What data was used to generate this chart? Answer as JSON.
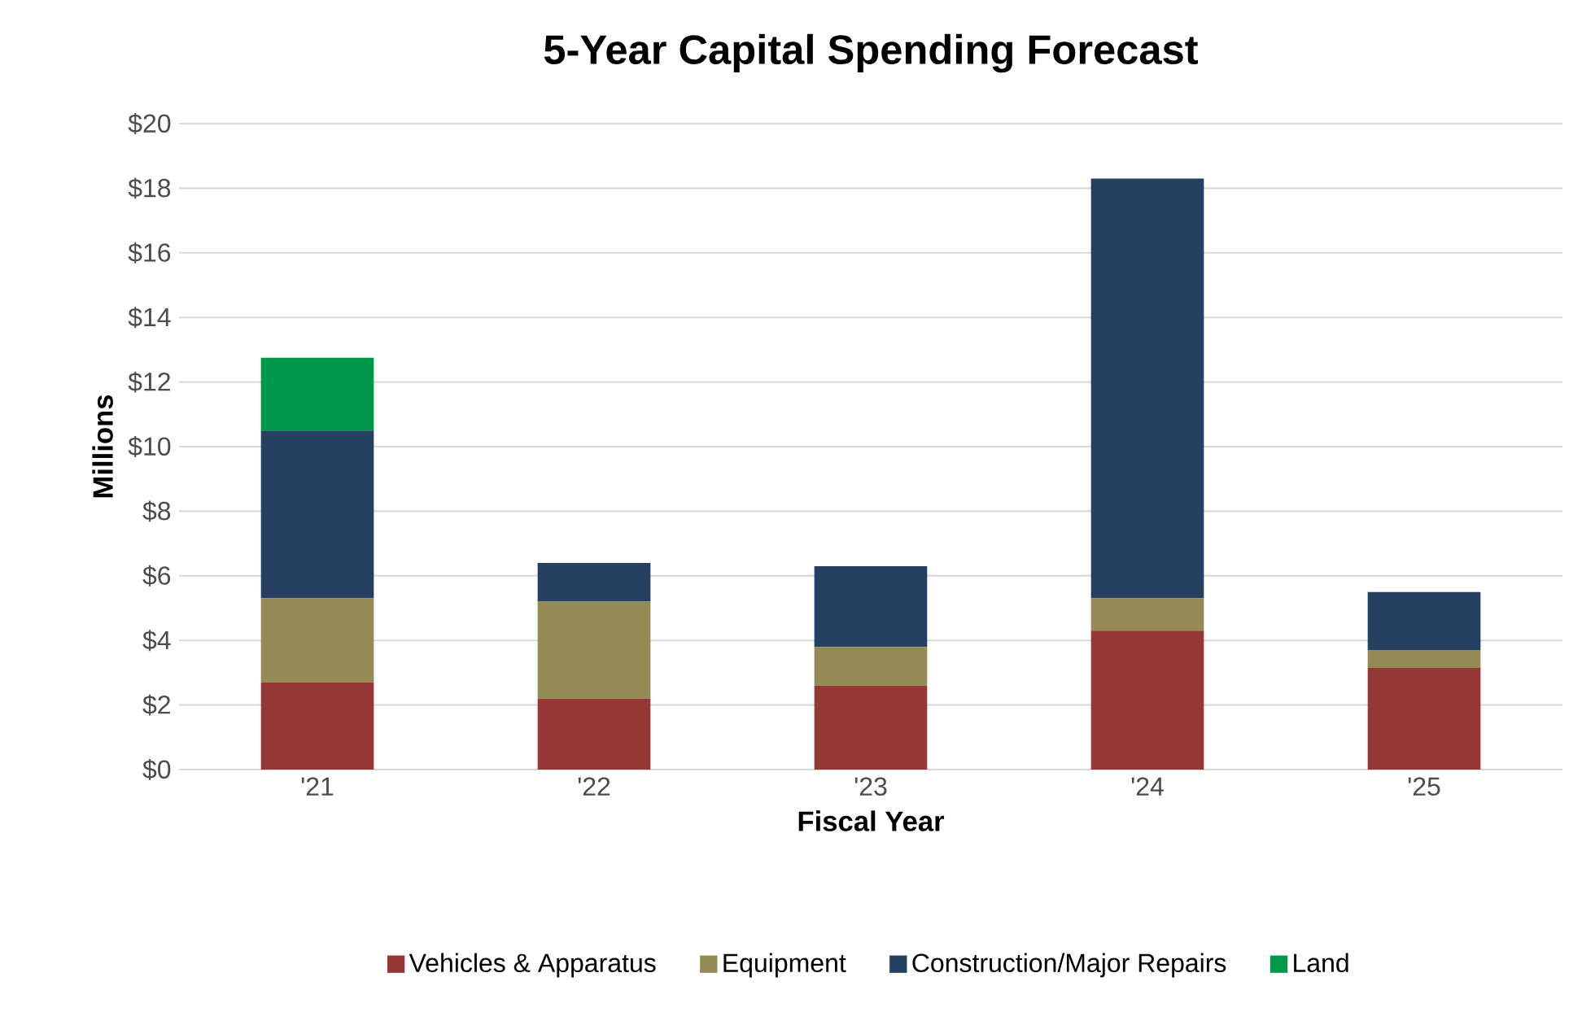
{
  "chart_data": {
    "type": "bar",
    "title": "5-Year Capital Spending Forecast",
    "xlabel": "Fiscal Year",
    "ylabel": "Millions",
    "categories": [
      "'21",
      "'22",
      "'23",
      "'24",
      "'25"
    ],
    "stacked": true,
    "series": [
      {
        "name": "Vehicles & Apparatus",
        "color": "#953735",
        "values": [
          2.7,
          2.2,
          2.6,
          4.3,
          3.15
        ]
      },
      {
        "name": "Equipment",
        "color": "#948a54",
        "values": [
          2.6,
          3.0,
          1.2,
          1.0,
          0.55
        ]
      },
      {
        "name": "Construction/Major Repairs",
        "color": "#254061",
        "values": [
          5.2,
          1.2,
          2.5,
          13.0,
          1.8
        ]
      },
      {
        "name": "Land",
        "color": "#00994c",
        "values": [
          2.25,
          null,
          null,
          null,
          null
        ]
      }
    ],
    "ylim": [
      0,
      20
    ],
    "yticks": [
      {
        "value": 0,
        "label": "$0"
      },
      {
        "value": 2,
        "label": "$2"
      },
      {
        "value": 4,
        "label": "$4"
      },
      {
        "value": 6,
        "label": "$6"
      },
      {
        "value": 8,
        "label": "$8"
      },
      {
        "value": 10,
        "label": "$10"
      },
      {
        "value": 12,
        "label": "$12"
      },
      {
        "value": 14,
        "label": "$14"
      },
      {
        "value": 16,
        "label": "$16"
      },
      {
        "value": 18,
        "label": "$18"
      },
      {
        "value": 20,
        "label": "$20"
      }
    ],
    "grid": "y",
    "legend": "bottom"
  }
}
